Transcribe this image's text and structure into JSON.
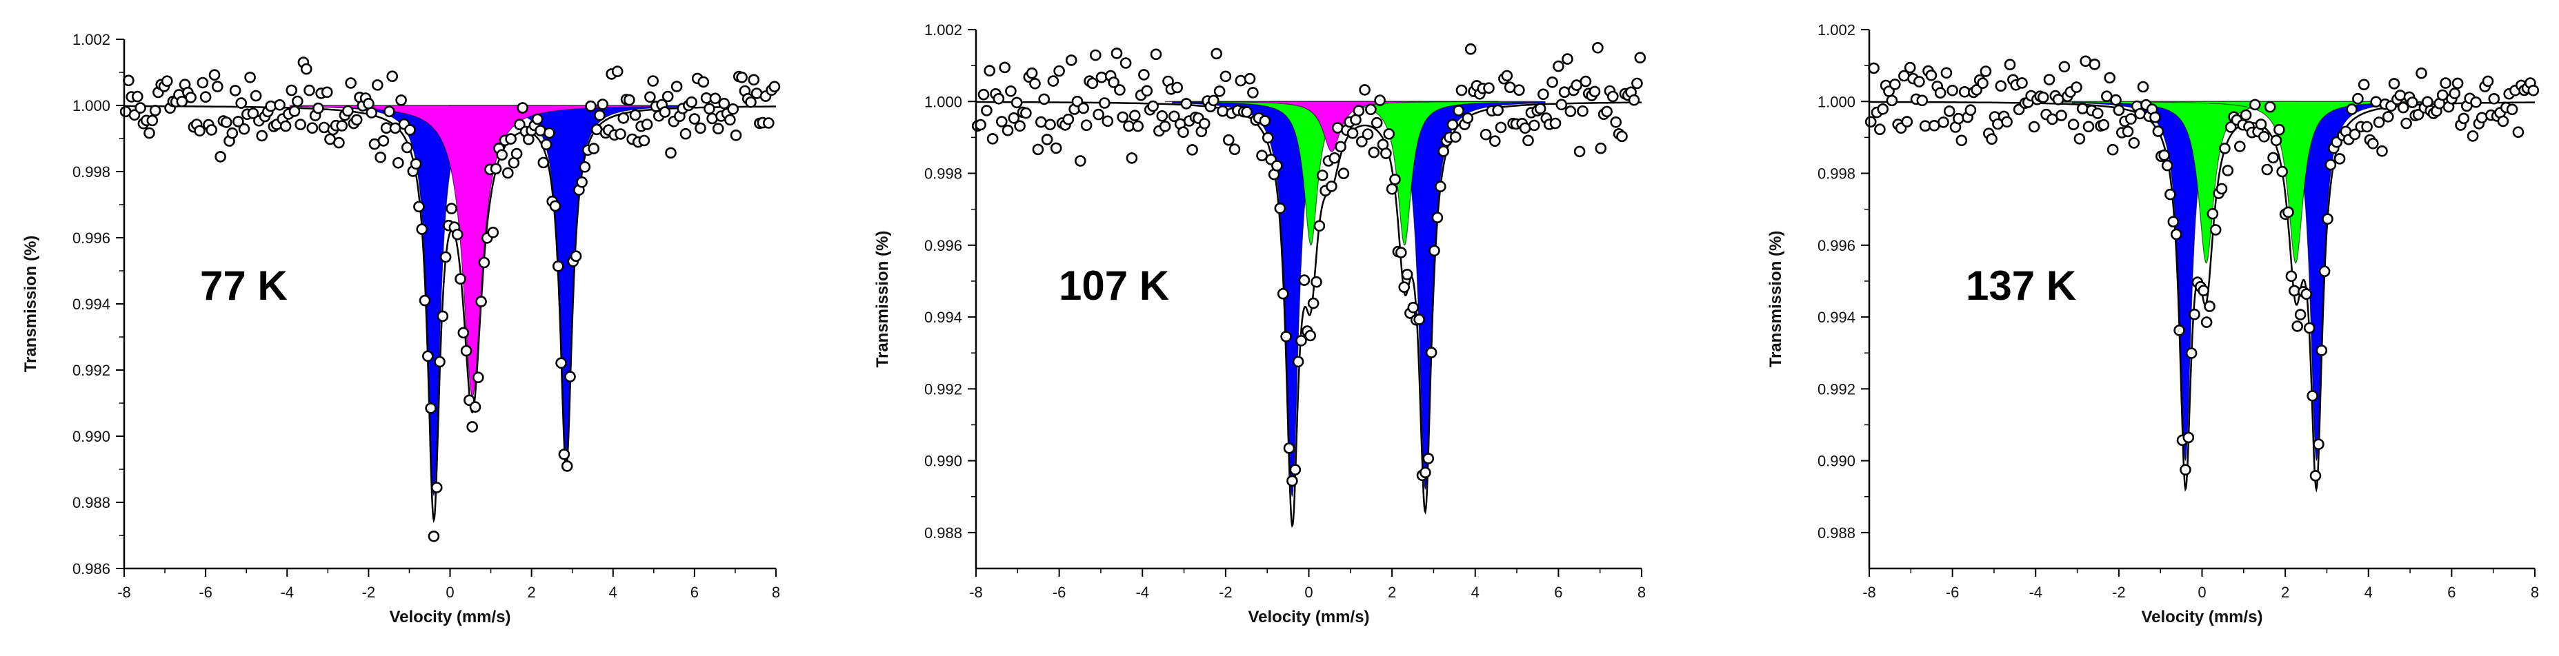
{
  "figure": {
    "colors": {
      "blue": "#0000ff",
      "magenta": "#ff00ff",
      "green": "#00ff00",
      "fit": "#000000",
      "points": "#000000"
    }
  },
  "chart_data": [
    {
      "type": "scatter",
      "title": "",
      "annotation": "77 K",
      "xlabel": "Velocity (mm/s)",
      "ylabel": "Transmission (%)",
      "xlim": [
        -8,
        8
      ],
      "ylim": [
        0.986,
        1.002
      ],
      "xticks": [
        -8,
        -6,
        -4,
        -2,
        0,
        2,
        4,
        6,
        8
      ],
      "xtick_labels": [
        "-8",
        "-6",
        "-4",
        "-2",
        "0",
        "2",
        "4",
        "6",
        "8"
      ],
      "yticks": [
        0.986,
        0.988,
        0.99,
        0.992,
        0.994,
        0.996,
        0.998,
        1.0,
        1.002
      ],
      "ytick_labels": [
        "0.986",
        "0.988",
        "0.990",
        "0.992",
        "0.994",
        "0.996",
        "0.998",
        "1.000",
        "1.002"
      ],
      "components": [
        {
          "name": "blue doublet",
          "color": "#0000ff",
          "lines": [
            {
              "center": -0.4,
              "depth": 0.0118,
              "hwhm": 0.18
            },
            {
              "center": 2.85,
              "depth": 0.0108,
              "hwhm": 0.18
            }
          ]
        },
        {
          "name": "magenta singlet",
          "color": "#ff00ff",
          "lines": [
            {
              "center": 0.55,
              "depth": 0.0088,
              "hwhm": 0.28
            }
          ]
        }
      ],
      "noise": 0.0006,
      "seed": 11
    },
    {
      "type": "scatter",
      "title": "",
      "annotation": "107 K",
      "xlabel": "Velocity (mm/s)",
      "ylabel": "Transmission (%)",
      "xlim": [
        -8,
        8
      ],
      "ylim": [
        0.987,
        1.002
      ],
      "xticks": [
        -8,
        -6,
        -4,
        -2,
        0,
        2,
        4,
        6,
        8
      ],
      "xtick_labels": [
        "-8",
        "-6",
        "-4",
        "-2",
        "0",
        "2",
        "4",
        "6",
        "8"
      ],
      "yticks": [
        0.988,
        0.99,
        0.992,
        0.994,
        0.996,
        0.998,
        1.0,
        1.002
      ],
      "ytick_labels": [
        "0.988",
        "0.990",
        "0.992",
        "0.994",
        "0.996",
        "0.998",
        "1.000",
        "1.002"
      ],
      "components": [
        {
          "name": "blue doublet",
          "color": "#0000ff",
          "lines": [
            {
              "center": -0.4,
              "depth": 0.011,
              "hwhm": 0.18
            },
            {
              "center": 2.8,
              "depth": 0.0108,
              "hwhm": 0.18
            }
          ]
        },
        {
          "name": "green doublet",
          "color": "#00ff00",
          "lines": [
            {
              "center": 0.05,
              "depth": 0.004,
              "hwhm": 0.2
            },
            {
              "center": 2.3,
              "depth": 0.004,
              "hwhm": 0.2
            }
          ]
        },
        {
          "name": "magenta singlet",
          "color": "#ff00ff",
          "lines": [
            {
              "center": 0.55,
              "depth": 0.0014,
              "hwhm": 0.25
            }
          ]
        }
      ],
      "noise": 0.0006,
      "seed": 23
    },
    {
      "type": "scatter",
      "title": "",
      "annotation": "137 K",
      "xlabel": "Velocity (mm/s)",
      "ylabel": "Transmission (%)",
      "xlim": [
        -8,
        8
      ],
      "ylim": [
        0.987,
        1.002
      ],
      "xticks": [
        -8,
        -6,
        -4,
        -2,
        0,
        2,
        4,
        6,
        8
      ],
      "xtick_labels": [
        "-8",
        "-6",
        "-4",
        "-2",
        "0",
        "2",
        "4",
        "6",
        "8"
      ],
      "yticks": [
        0.988,
        0.99,
        0.992,
        0.994,
        0.996,
        0.998,
        1.0,
        1.002
      ],
      "ytick_labels": [
        "0.988",
        "0.990",
        "0.992",
        "0.994",
        "0.996",
        "0.998",
        "1.000",
        "1.002"
      ],
      "components": [
        {
          "name": "blue doublet",
          "color": "#0000ff",
          "lines": [
            {
              "center": -0.4,
              "depth": 0.01,
              "hwhm": 0.17
            },
            {
              "center": 2.75,
              "depth": 0.01,
              "hwhm": 0.17
            }
          ]
        },
        {
          "name": "green doublet",
          "color": "#00ff00",
          "lines": [
            {
              "center": 0.1,
              "depth": 0.0045,
              "hwhm": 0.22
            },
            {
              "center": 2.25,
              "depth": 0.0045,
              "hwhm": 0.22
            }
          ]
        }
      ],
      "noise": 0.0005,
      "seed": 37
    }
  ]
}
